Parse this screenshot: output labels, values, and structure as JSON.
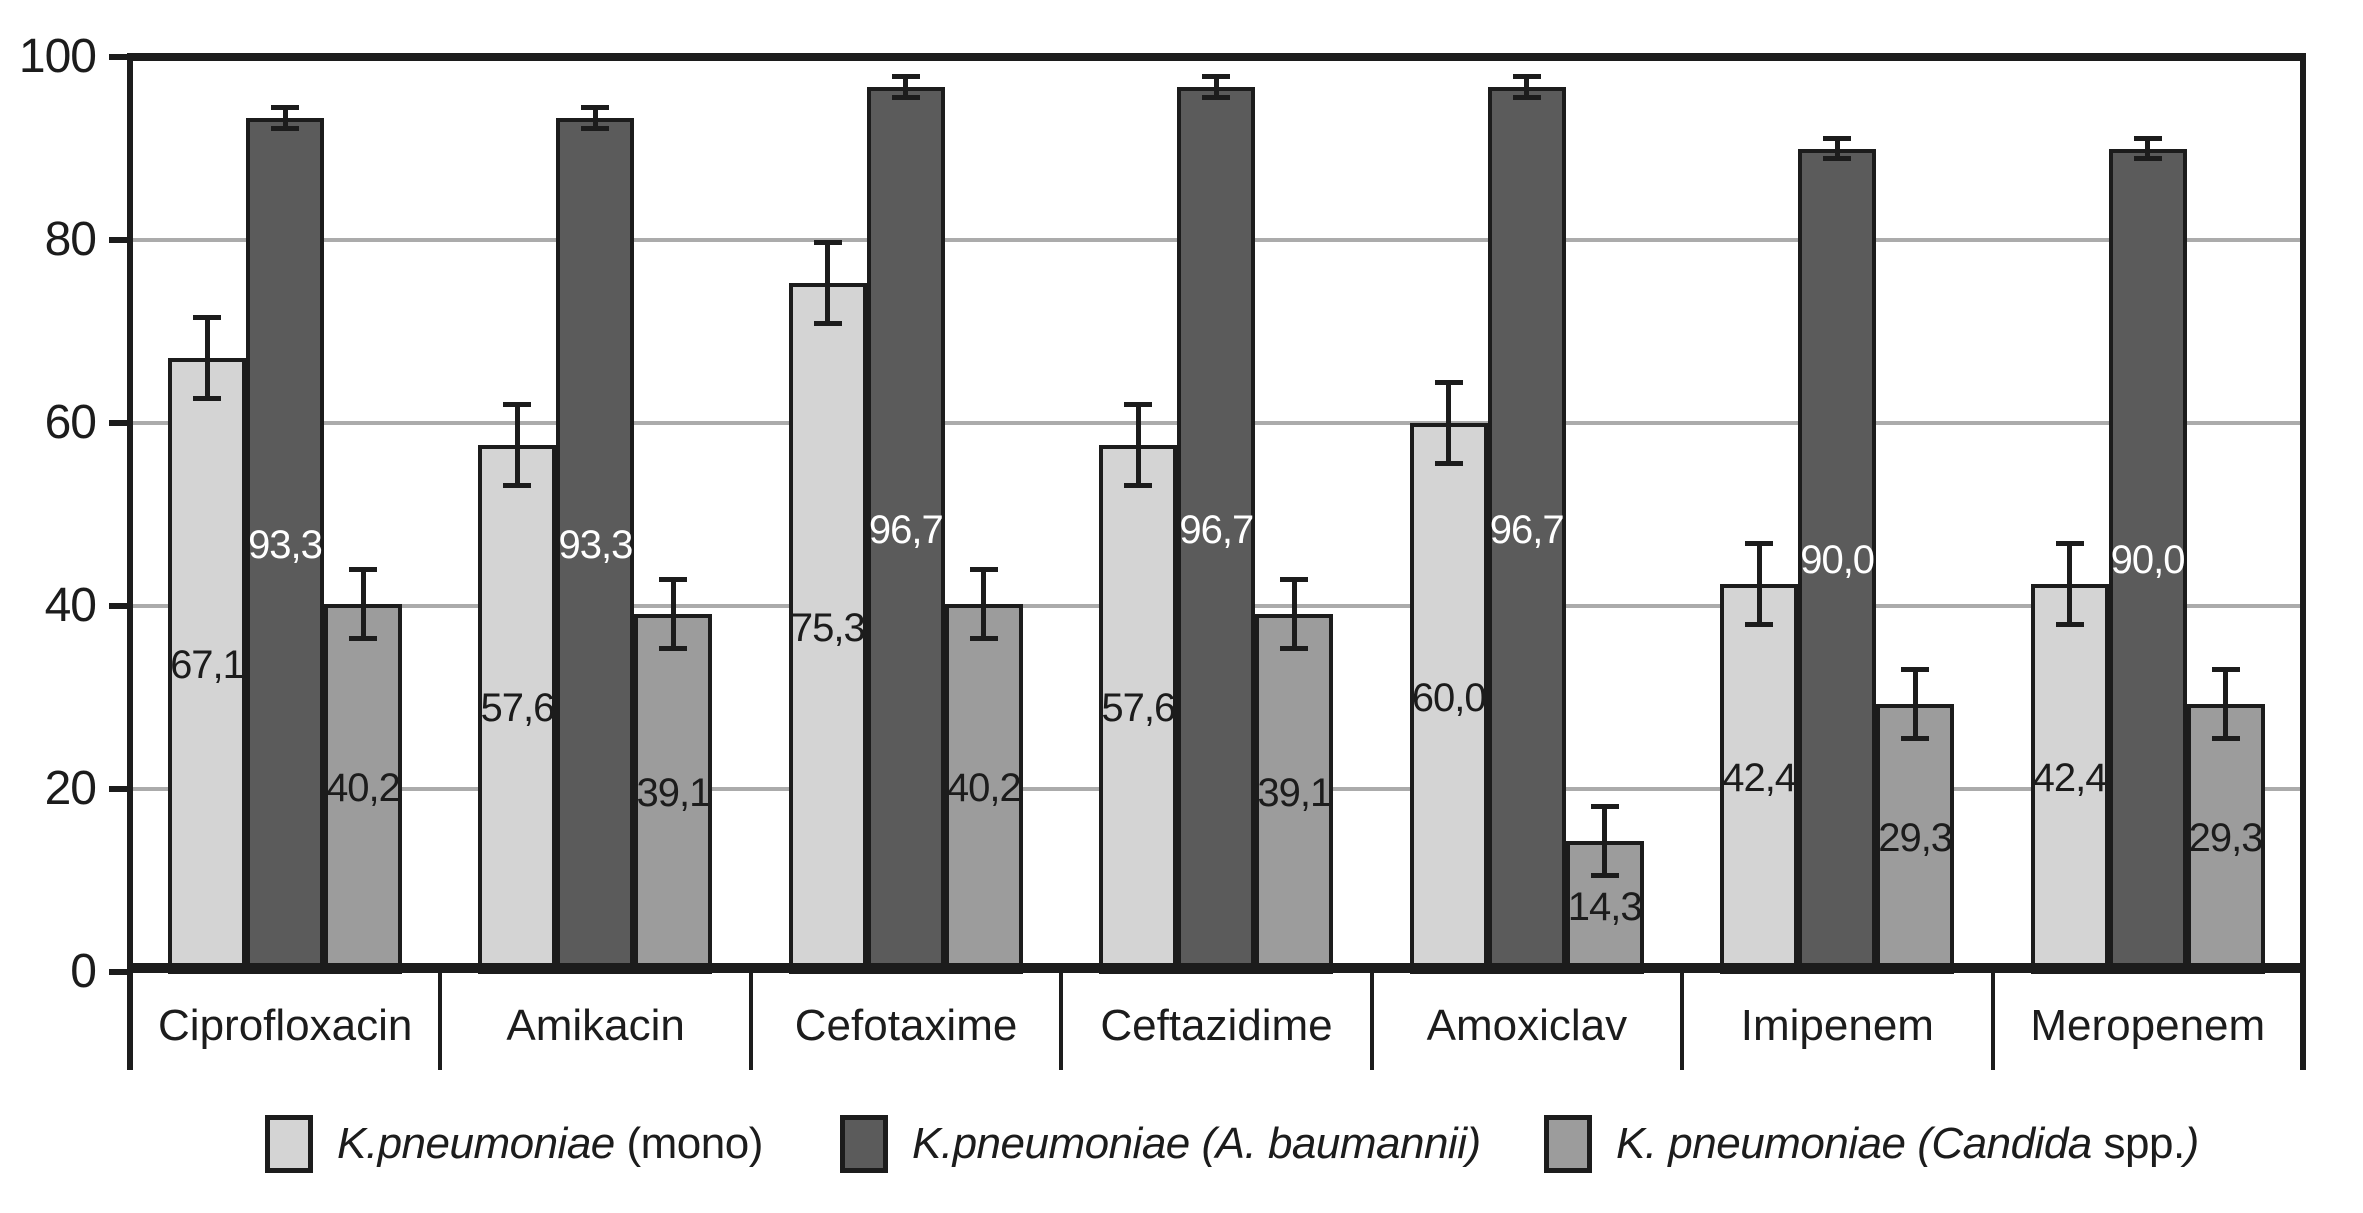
{
  "chart_data": {
    "type": "bar",
    "title": "",
    "xlabel": "",
    "ylabel": "",
    "categories": [
      "Ciprofloxacin",
      "Amikacin",
      "Cefotaxime",
      "Ceftazidime",
      "Amoxiclav",
      "Imipenem",
      "Meropenem"
    ],
    "series": [
      {
        "key": "mono",
        "name_runs": [
          {
            "text": "K.pneumoniae",
            "italic": true
          },
          {
            "text": " (mono)",
            "italic": false
          }
        ],
        "color": "#d4d4d4",
        "label_color": "#1c1c1c",
        "values": [
          67.1,
          57.6,
          75.3,
          57.6,
          60.0,
          42.4,
          42.4
        ],
        "value_labels": [
          "67,1",
          "57,6",
          "75,3",
          "57,6",
          "60,0",
          "42,4",
          "42,4"
        ],
        "error": 4.5
      },
      {
        "key": "a-baumannii",
        "name_runs": [
          {
            "text": "K.pneumoniae (A. baumannii)",
            "italic": true
          }
        ],
        "color": "#5b5b5b",
        "label_color": "#ffffff",
        "values": [
          93.3,
          93.3,
          96.7,
          96.7,
          96.7,
          90.0,
          90.0
        ],
        "value_labels": [
          "93,3",
          "93,3",
          "96,7",
          "96,7",
          "96,7",
          "90,0",
          "90,0"
        ],
        "error": 1.2
      },
      {
        "key": "candida-spp",
        "name_runs": [
          {
            "text": "K. pneumoniae (Candida",
            "italic": true
          },
          {
            "text": " spp.",
            "italic": false
          },
          {
            "text": ")",
            "italic": true
          }
        ],
        "color": "#9c9c9c",
        "label_color": "#1c1c1c",
        "values": [
          40.2,
          39.1,
          40.2,
          39.1,
          14.3,
          29.3,
          29.3
        ],
        "value_labels": [
          "40,2",
          "39,1",
          "40,2",
          "39,1",
          "14,3",
          "29,3",
          "29,3"
        ],
        "error": 3.8
      }
    ],
    "y_axis": {
      "min": 0,
      "max": 100,
      "tick_step": 20,
      "tick_labels": [
        "0",
        "20",
        "40",
        "60",
        "80",
        "100"
      ]
    },
    "grid": true,
    "gridline_values": [
      20,
      40,
      60,
      80
    ],
    "legend_position": "bottom",
    "style_colors": {
      "grid": "#ababab",
      "axis": "#1c1c1c",
      "background": "#ffffff"
    }
  }
}
